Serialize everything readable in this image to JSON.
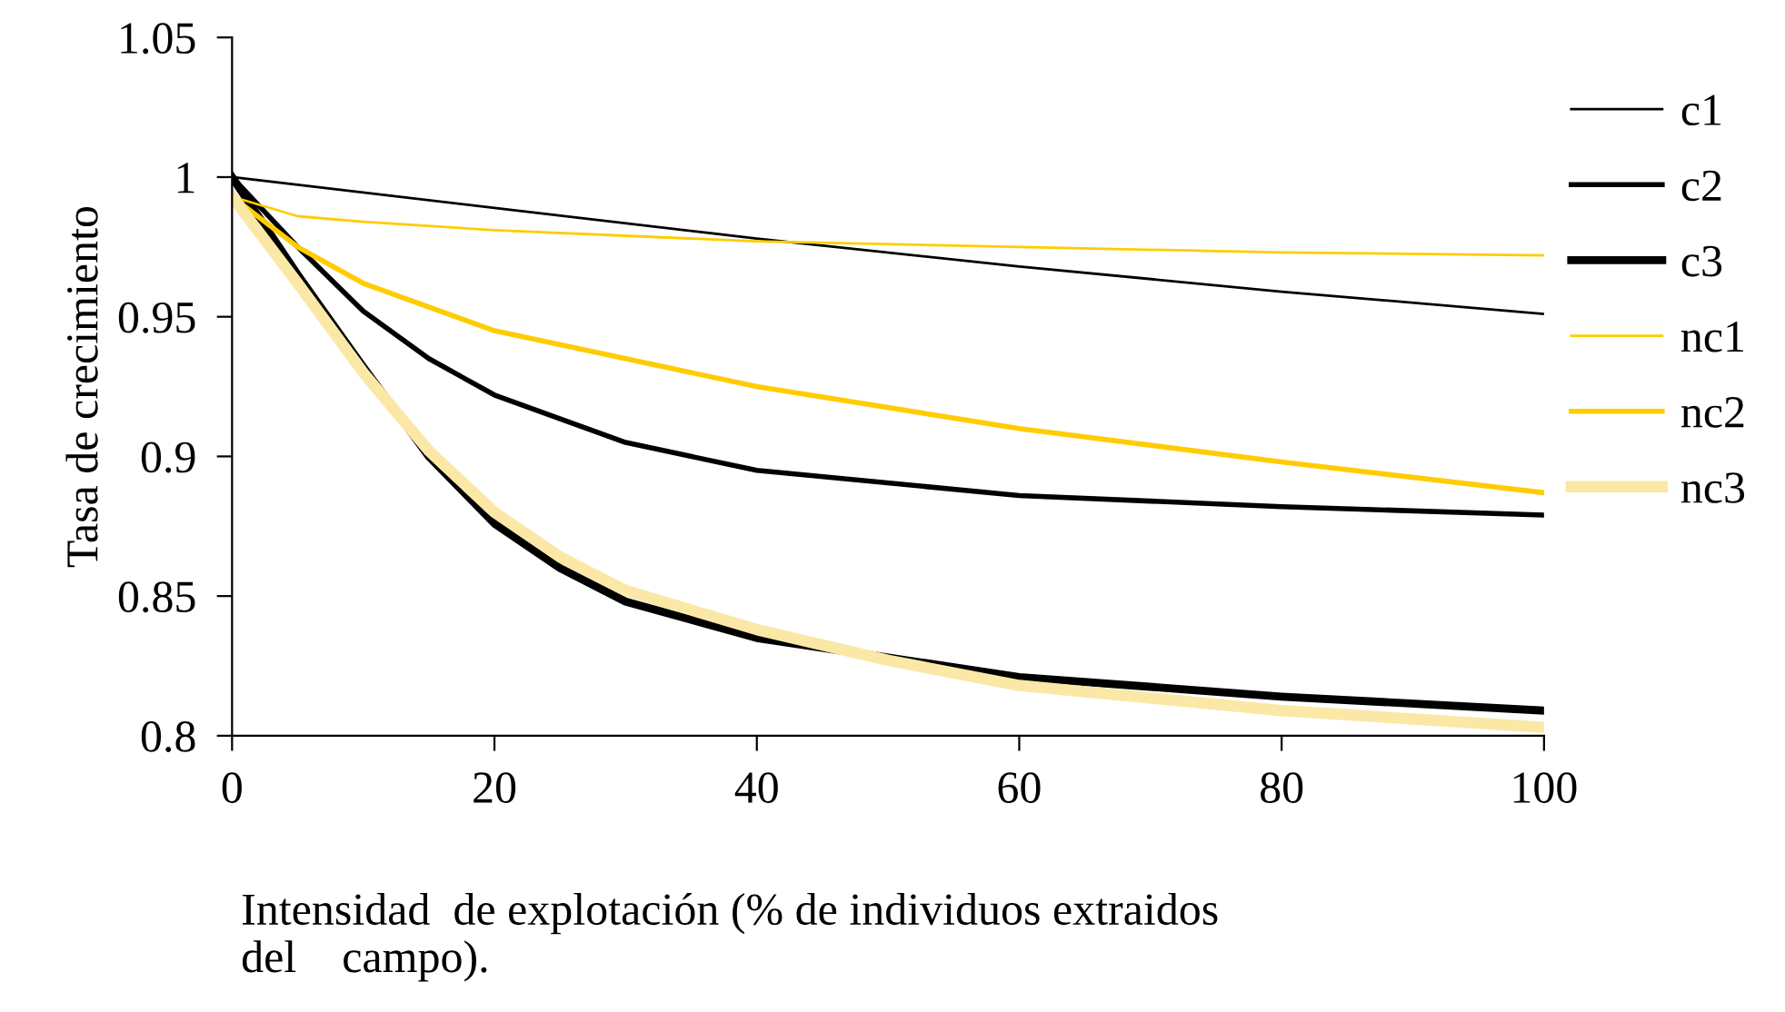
{
  "chart_data": {
    "type": "line",
    "xlabel": "Intensidad  de explotación (% de individuos extraidos\ndel    campo).",
    "ylabel": "Tasa de crecimiento",
    "xlim": [
      0,
      100
    ],
    "xticks": [
      0,
      20,
      40,
      60,
      80,
      100
    ],
    "ylim": [
      0.8,
      1.05
    ],
    "yticks": [
      0.8,
      0.85,
      0.9,
      0.95,
      1,
      1.05
    ],
    "grid": false,
    "legend": "right",
    "marker": "none",
    "line_style": "solid",
    "series": [
      {
        "name": "c1",
        "color": "#000000",
        "x": [
          0,
          20,
          40,
          60,
          80,
          100
        ],
        "values": [
          1.0,
          0.989,
          0.978,
          0.968,
          0.959,
          0.951
        ]
      },
      {
        "name": "c2",
        "color": "#000000",
        "x": [
          0,
          5,
          10,
          15,
          20,
          30,
          40,
          60,
          80,
          100
        ],
        "values": [
          1.0,
          0.975,
          0.952,
          0.935,
          0.922,
          0.905,
          0.895,
          0.886,
          0.882,
          0.879
        ]
      },
      {
        "name": "c3",
        "color": "#000000",
        "x": [
          0,
          5,
          10,
          15,
          20,
          25,
          30,
          40,
          60,
          80,
          100
        ],
        "values": [
          1.0,
          0.965,
          0.932,
          0.9,
          0.876,
          0.86,
          0.848,
          0.835,
          0.821,
          0.814,
          0.809
        ]
      },
      {
        "name": "nc1",
        "color": "#ffcc00",
        "x": [
          0,
          5,
          10,
          20,
          40,
          60,
          80,
          100
        ],
        "values": [
          0.993,
          0.986,
          0.984,
          0.981,
          0.977,
          0.975,
          0.973,
          0.972
        ]
      },
      {
        "name": "nc2",
        "color": "#ffcc00",
        "x": [
          0,
          5,
          10,
          20,
          30,
          40,
          60,
          80,
          100
        ],
        "values": [
          0.993,
          0.975,
          0.962,
          0.945,
          0.935,
          0.925,
          0.91,
          0.898,
          0.887
        ]
      },
      {
        "name": "nc3",
        "color": "#fbe8a6",
        "x": [
          0,
          5,
          10,
          15,
          20,
          25,
          30,
          40,
          50,
          60,
          80,
          100
        ],
        "values": [
          0.993,
          0.962,
          0.93,
          0.902,
          0.88,
          0.864,
          0.852,
          0.838,
          0.827,
          0.818,
          0.809,
          0.803
        ]
      }
    ]
  }
}
